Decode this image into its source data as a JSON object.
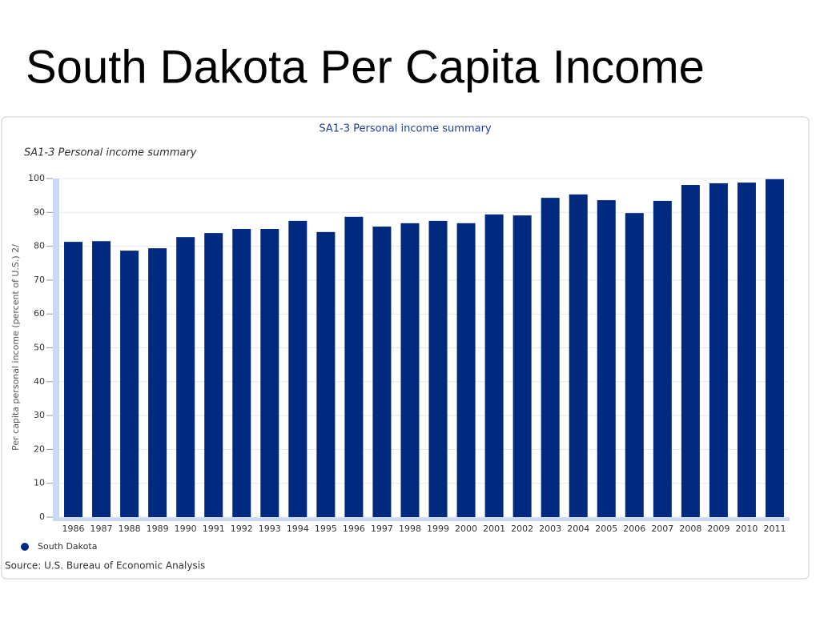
{
  "slide_title": "South Dakota Per Capita Income",
  "chart_data": {
    "type": "bar",
    "title": "SA1-3 Personal income summary",
    "subtitle": "SA1-3 Personal income summary",
    "y_label": "Per capita personal income (percent of U.S.) 2/",
    "source": "Source: U.S. Bureau of Economic Analysis",
    "categories": [
      "1986",
      "1987",
      "1988",
      "1989",
      "1990",
      "1991",
      "1992",
      "1993",
      "1994",
      "1995",
      "1996",
      "1997",
      "1998",
      "1999",
      "2000",
      "2001",
      "2002",
      "2003",
      "2004",
      "2005",
      "2006",
      "2007",
      "2008",
      "2009",
      "2010",
      "2011"
    ],
    "series": [
      {
        "name": "South Dakota",
        "color": "#002a80",
        "values": [
          81.3,
          81.5,
          78.7,
          79.4,
          82.7,
          83.9,
          85.1,
          85.1,
          87.5,
          84.2,
          88.7,
          85.8,
          86.8,
          87.5,
          86.8,
          89.4,
          89.1,
          94.3,
          95.3,
          93.6,
          89.8,
          93.4,
          98.1,
          98.6,
          98.8,
          99.8
        ]
      }
    ],
    "ylim": [
      0,
      100
    ],
    "yticks": [
      0,
      10,
      20,
      30,
      40,
      50,
      60,
      70,
      80,
      90,
      100
    ],
    "grid": true
  }
}
